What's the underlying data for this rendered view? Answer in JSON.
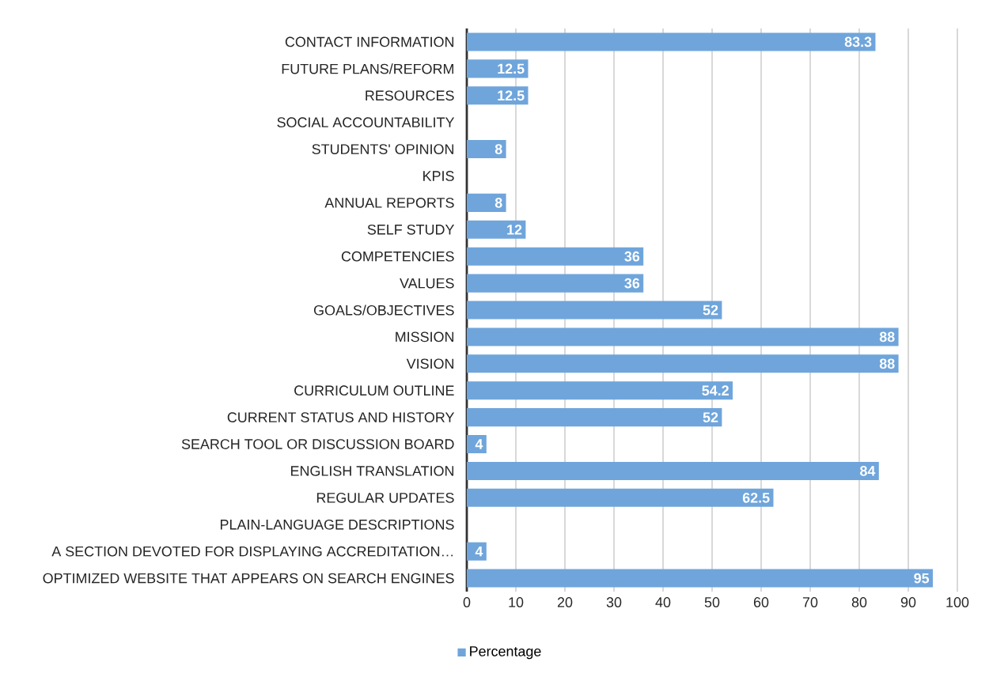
{
  "chart_data": {
    "type": "bar",
    "orientation": "horizontal",
    "categories": [
      "CONTACT INFORMATION",
      "FUTURE PLANS/REFORM",
      "RESOURCES",
      "SOCIAL ACCOUNTABILITY",
      "STUDENTS' OPINION",
      "KPIS",
      "ANNUAL REPORTS",
      "SELF STUDY",
      "COMPETENCIES",
      "VALUES",
      "GOALS/OBJECTIVES",
      "MISSION",
      "VISION",
      "CURRICULUM OUTLINE",
      "CURRENT STATUS AND HISTORY",
      "SEARCH TOOL OR DISCUSSION BOARD",
      "ENGLISH TRANSLATION",
      "REGULAR UPDATES",
      "PLAIN-LANGUAGE DESCRIPTIONS",
      "A SECTION DEVOTED FOR DISPLAYING ACCREDITATION…",
      "OPTIMIZED WEBSITE THAT APPEARS ON SEARCH ENGINES"
    ],
    "series": [
      {
        "name": "Percentage",
        "color": "#6fa5db",
        "values": [
          83.3,
          12.5,
          12.5,
          null,
          8,
          null,
          8,
          12,
          36,
          36,
          52,
          88,
          88,
          54.2,
          52,
          4,
          84,
          62.5,
          null,
          4,
          95
        ]
      }
    ],
    "xlim": [
      0,
      100
    ],
    "xticks": [
      0,
      10,
      20,
      30,
      40,
      50,
      60,
      70,
      80,
      90,
      100
    ],
    "grid": "x",
    "legend": "bottom",
    "data_labels": true
  }
}
